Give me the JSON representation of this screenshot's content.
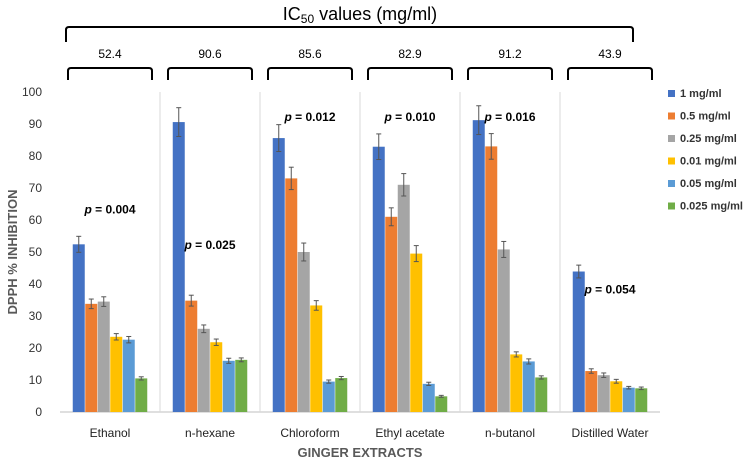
{
  "chart_data": {
    "type": "bar",
    "title": "IC50 values (mg/ml)",
    "title_parts": {
      "pre": "IC",
      "sub": "50",
      "post": " values (mg/ml)"
    },
    "xlabel": "GINGER EXTRACTS",
    "ylabel": "DPPH % INHIBITION",
    "ylim": [
      0,
      100
    ],
    "yticks": [
      0,
      10,
      20,
      30,
      40,
      50,
      60,
      70,
      80,
      90,
      100
    ],
    "grid": false,
    "legend_position": "right",
    "categories": [
      "Ethanol",
      "n-hexane",
      "Chloroform",
      "Ethyl acetate",
      "n-butanol",
      "Distilled Water"
    ],
    "ic50": [
      "52.4",
      "90.6",
      "85.6",
      "82.9",
      "91.2",
      "43.9"
    ],
    "p_values": [
      {
        "label": "p",
        "value": "= 0.004",
        "y": 62
      },
      {
        "label": "p",
        "value": "=  0.025",
        "y": 51
      },
      {
        "label": "p",
        "value": "= 0.012",
        "y": 91
      },
      {
        "label": "p",
        "value": "= 0.010",
        "y": 91
      },
      {
        "label": "p",
        "value": "=  0.016",
        "y": 91
      },
      {
        "label": "p",
        "value": "=  0.054",
        "y": 37
      }
    ],
    "series": [
      {
        "name": "1 mg/ml",
        "color": "#4472C4",
        "values": [
          52.4,
          90.6,
          85.6,
          82.9,
          91.2,
          43.9
        ],
        "errors": [
          2.5,
          4.5,
          4.2,
          4.0,
          4.5,
          2.0
        ]
      },
      {
        "name": "0.5 mg/ml",
        "color": "#ED7D31",
        "values": [
          33.8,
          34.8,
          73.0,
          61.0,
          83.0,
          12.8
        ],
        "errors": [
          1.5,
          1.7,
          3.5,
          2.8,
          4.0,
          0.7
        ]
      },
      {
        "name": "0.25 mg/ml",
        "color": "#A5A5A5",
        "values": [
          34.5,
          26.0,
          50.0,
          71.0,
          50.8,
          11.5
        ],
        "errors": [
          1.5,
          1.2,
          2.8,
          3.5,
          2.5,
          0.7
        ]
      },
      {
        "name": "0.01 mg/ml",
        "color": "#FFC000",
        "values": [
          23.5,
          21.8,
          33.3,
          49.5,
          18.0,
          9.6
        ],
        "errors": [
          1.0,
          1.0,
          1.5,
          2.5,
          0.8,
          0.6
        ]
      },
      {
        "name": "0.05 mg/ml",
        "color": "#5B9BD5",
        "values": [
          22.6,
          16.0,
          9.5,
          8.8,
          15.8,
          7.6
        ],
        "errors": [
          1.0,
          0.8,
          0.5,
          0.5,
          0.8,
          0.4
        ]
      },
      {
        "name": "0.025 mg/ml",
        "color": "#70AD47",
        "values": [
          10.5,
          16.3,
          10.6,
          4.9,
          10.8,
          7.4
        ],
        "errors": [
          0.5,
          0.6,
          0.5,
          0.3,
          0.5,
          0.4
        ]
      }
    ]
  }
}
